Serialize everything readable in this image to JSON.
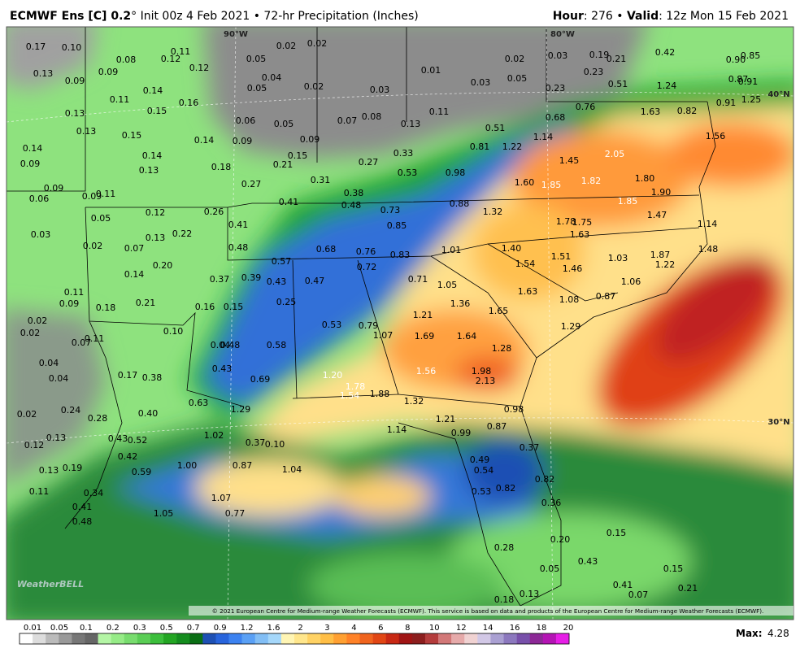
{
  "header": {
    "model": "ECMWF Ens [C] 0.2",
    "description": "° Init 00z 4 Feb 2021 • 72-hr Precipitation (Inches)",
    "hour_label": "Hour",
    "hour": ": 276 •",
    "valid_label": "Valid",
    "valid": ": 12z Mon 15 Feb 2021"
  },
  "map": {
    "grid_labels": [
      "90°W",
      "80°W",
      "40°N",
      "30°N"
    ],
    "logo": "WeatherBELL",
    "copyright": "© 2021 European Centre for Medium-range Weather Forecasts (ECMWF). This service is based on data and products of the European Centre for Medium-range Weather Forecasts (ECMWF).",
    "values": [
      "0.17",
      "0.10",
      "0.02",
      "0.02",
      "0.08",
      "0.12",
      "0.11",
      "0.12",
      "0.05",
      "0.02",
      "0.03",
      "0.19",
      "0.21",
      "0.42",
      "0.90",
      "0.85",
      "0.13",
      "0.09",
      "0.09",
      "0.04",
      "0.05",
      "0.02",
      "0.03",
      "0.01",
      "0.03",
      "0.05",
      "0.23",
      "0.51",
      "1.24",
      "0.87",
      "0.91",
      "0.23",
      "0.14",
      "0.11",
      "0.16",
      "0.91",
      "1.25",
      "0.15",
      "0.13",
      "0.06",
      "0.05",
      "0.07",
      "0.08",
      "0.11",
      "0.13",
      "0.76",
      "1.63",
      "0.82",
      "0.68",
      "0.13",
      "0.15",
      "0.14",
      "0.09",
      "0.09",
      "0.51",
      "1.14",
      "1.22",
      "0.81",
      "1.56",
      "0.14",
      "0.09",
      "0.14",
      "0.13",
      "0.18",
      "0.15",
      "0.21",
      "0.27",
      "0.33",
      "2.05",
      "1.45",
      "0.53",
      "0.98",
      "0.31",
      "1.60",
      "1.85",
      "1.82",
      "1.80",
      "0.27",
      "1.90",
      "0.09",
      "0.06",
      "0.09",
      "0.11",
      "0.38",
      "0.41",
      "0.48",
      "0.88",
      "1.85",
      "0.12",
      "0.26",
      "0.73",
      "1.32",
      "1.47",
      "0.05",
      "0.41",
      "0.85",
      "1.78",
      "1.75",
      "1.14",
      "0.03",
      "0.13",
      "0.22",
      "1.63",
      "0.02",
      "0.07",
      "0.48",
      "0.68",
      "0.76",
      "0.83",
      "1.01",
      "1.40",
      "1.51",
      "1.03",
      "1.87",
      "1.48",
      "0.57",
      "0.72",
      "1.54",
      "1.46",
      "1.22",
      "0.20",
      "0.14",
      "0.37",
      "0.39",
      "0.43",
      "0.47",
      "0.71",
      "1.05",
      "1.06",
      "1.63",
      "0.11",
      "0.09",
      "0.18",
      "0.21",
      "0.25",
      "0.16",
      "0.15",
      "1.36",
      "1.08",
      "0.87",
      "1.65",
      "1.21",
      "0.02",
      "0.02",
      "0.53",
      "0.79",
      "1.29",
      "0.10",
      "0.07",
      "0.11",
      "1.07",
      "1.69",
      "1.64",
      "0.58",
      "0.04",
      "0.48",
      "1.28",
      "0.04",
      "0.43",
      "1.56",
      "1.98",
      "0.17",
      "0.38",
      "0.04",
      "0.69",
      "1.20",
      "2.13",
      "1.78",
      "1.54",
      "1.88",
      "1.32",
      "0.63",
      "1.29",
      "0.98",
      "0.02",
      "0.24",
      "0.28",
      "0.40",
      "1.21",
      "0.87",
      "1.14",
      "0.99",
      "1.02",
      "0.43",
      "0.52",
      "0.10",
      "0.37",
      "0.12",
      "0.13",
      "0.37",
      "0.42",
      "0.49",
      "1.00",
      "0.87",
      "1.04",
      "0.19",
      "0.13",
      "0.54",
      "0.59",
      "0.82",
      "0.11",
      "0.34",
      "0.53",
      "0.82",
      "1.07",
      "0.41",
      "0.36",
      "1.05",
      "0.77",
      "0.48",
      "0.20",
      "0.15",
      "0.28",
      "0.43",
      "0.05",
      "0.15",
      "0.41",
      "0.21",
      "0.18",
      "0.13",
      "0.07"
    ]
  },
  "legend": {
    "ticks": [
      "0.01",
      "0.05",
      "0.1",
      "0.2",
      "0.3",
      "0.5",
      "0.7",
      "0.9",
      "1.2",
      "1.6",
      "2",
      "3",
      "4",
      "6",
      "8",
      "10",
      "12",
      "14",
      "16",
      "18",
      "20"
    ],
    "colors": [
      "#ffffff",
      "#dddddd",
      "#bbbbbb",
      "#999999",
      "#777777",
      "#666666",
      "#b4f5a5",
      "#96eb87",
      "#78dc6e",
      "#5acd55",
      "#3cbe3c",
      "#23a523",
      "#148c1e",
      "#0a6e14",
      "#1e50b4",
      "#2864dc",
      "#3c82f0",
      "#5aa0f5",
      "#82bef5",
      "#a5d7fa",
      "#fff5b4",
      "#ffe68c",
      "#ffd264",
      "#ffbe46",
      "#ffa032",
      "#ff8228",
      "#f0641e",
      "#e14614",
      "#c82814",
      "#a01414",
      "#8c1e1e",
      "#b43c3c",
      "#d27878",
      "#e6aaaa",
      "#f0d2d2",
      "#d2c8e6",
      "#aaa0d2",
      "#8c78be",
      "#7850aa",
      "#8c2896",
      "#b414b4",
      "#e61ee6"
    ],
    "max_label": "Max:",
    "max_value": "4.28"
  }
}
